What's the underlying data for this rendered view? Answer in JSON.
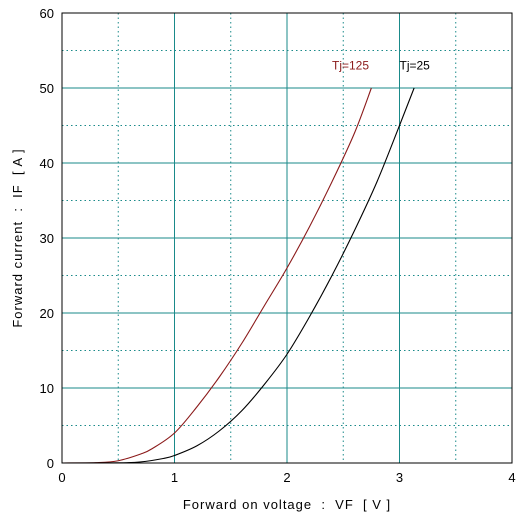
{
  "chart_data": {
    "type": "line",
    "title": "",
    "xlabel": "Forward on voltage  :  VF  [ V ]",
    "ylabel": "Forward current  :  IF  [ A ]",
    "xlim": [
      0,
      4
    ],
    "ylim": [
      0,
      60
    ],
    "x_ticks": [
      "0",
      "1",
      "2",
      "3",
      "4"
    ],
    "y_ticks": [
      "0",
      "10",
      "20",
      "30",
      "40",
      "50",
      "60"
    ],
    "grid": true,
    "grid_major_color": "#1a8a8a",
    "grid_minor_color": "#1a8a8a",
    "series": [
      {
        "name": "Tj=125",
        "color": "#8b1a1a",
        "x": [
          0.0,
          0.3,
          0.5,
          0.7,
          0.8,
          1.0,
          1.2,
          1.4,
          1.6,
          1.8,
          2.0,
          2.2,
          2.4,
          2.6,
          2.75
        ],
        "y": [
          0.0,
          0.05,
          0.3,
          1.2,
          1.9,
          4.0,
          7.5,
          11.5,
          16.0,
          21.0,
          26.0,
          31.5,
          37.5,
          44.0,
          50.0
        ]
      },
      {
        "name": "Tj=25",
        "color": "#000000",
        "x": [
          0.0,
          0.5,
          0.7,
          0.9,
          1.0,
          1.2,
          1.4,
          1.6,
          1.8,
          2.0,
          2.2,
          2.4,
          2.6,
          2.8,
          3.0,
          3.13
        ],
        "y": [
          0.0,
          0.02,
          0.15,
          0.6,
          1.0,
          2.3,
          4.3,
          7.0,
          10.5,
          14.5,
          19.5,
          25.0,
          31.0,
          37.5,
          45.0,
          50.0
        ]
      }
    ],
    "annotations": [
      {
        "text": "Tj=125",
        "x": 2.4,
        "y": 52.5,
        "color": "#8b1a1a"
      },
      {
        "text": "Tj=25",
        "x": 3.0,
        "y": 52.5,
        "color": "#000000"
      }
    ]
  }
}
